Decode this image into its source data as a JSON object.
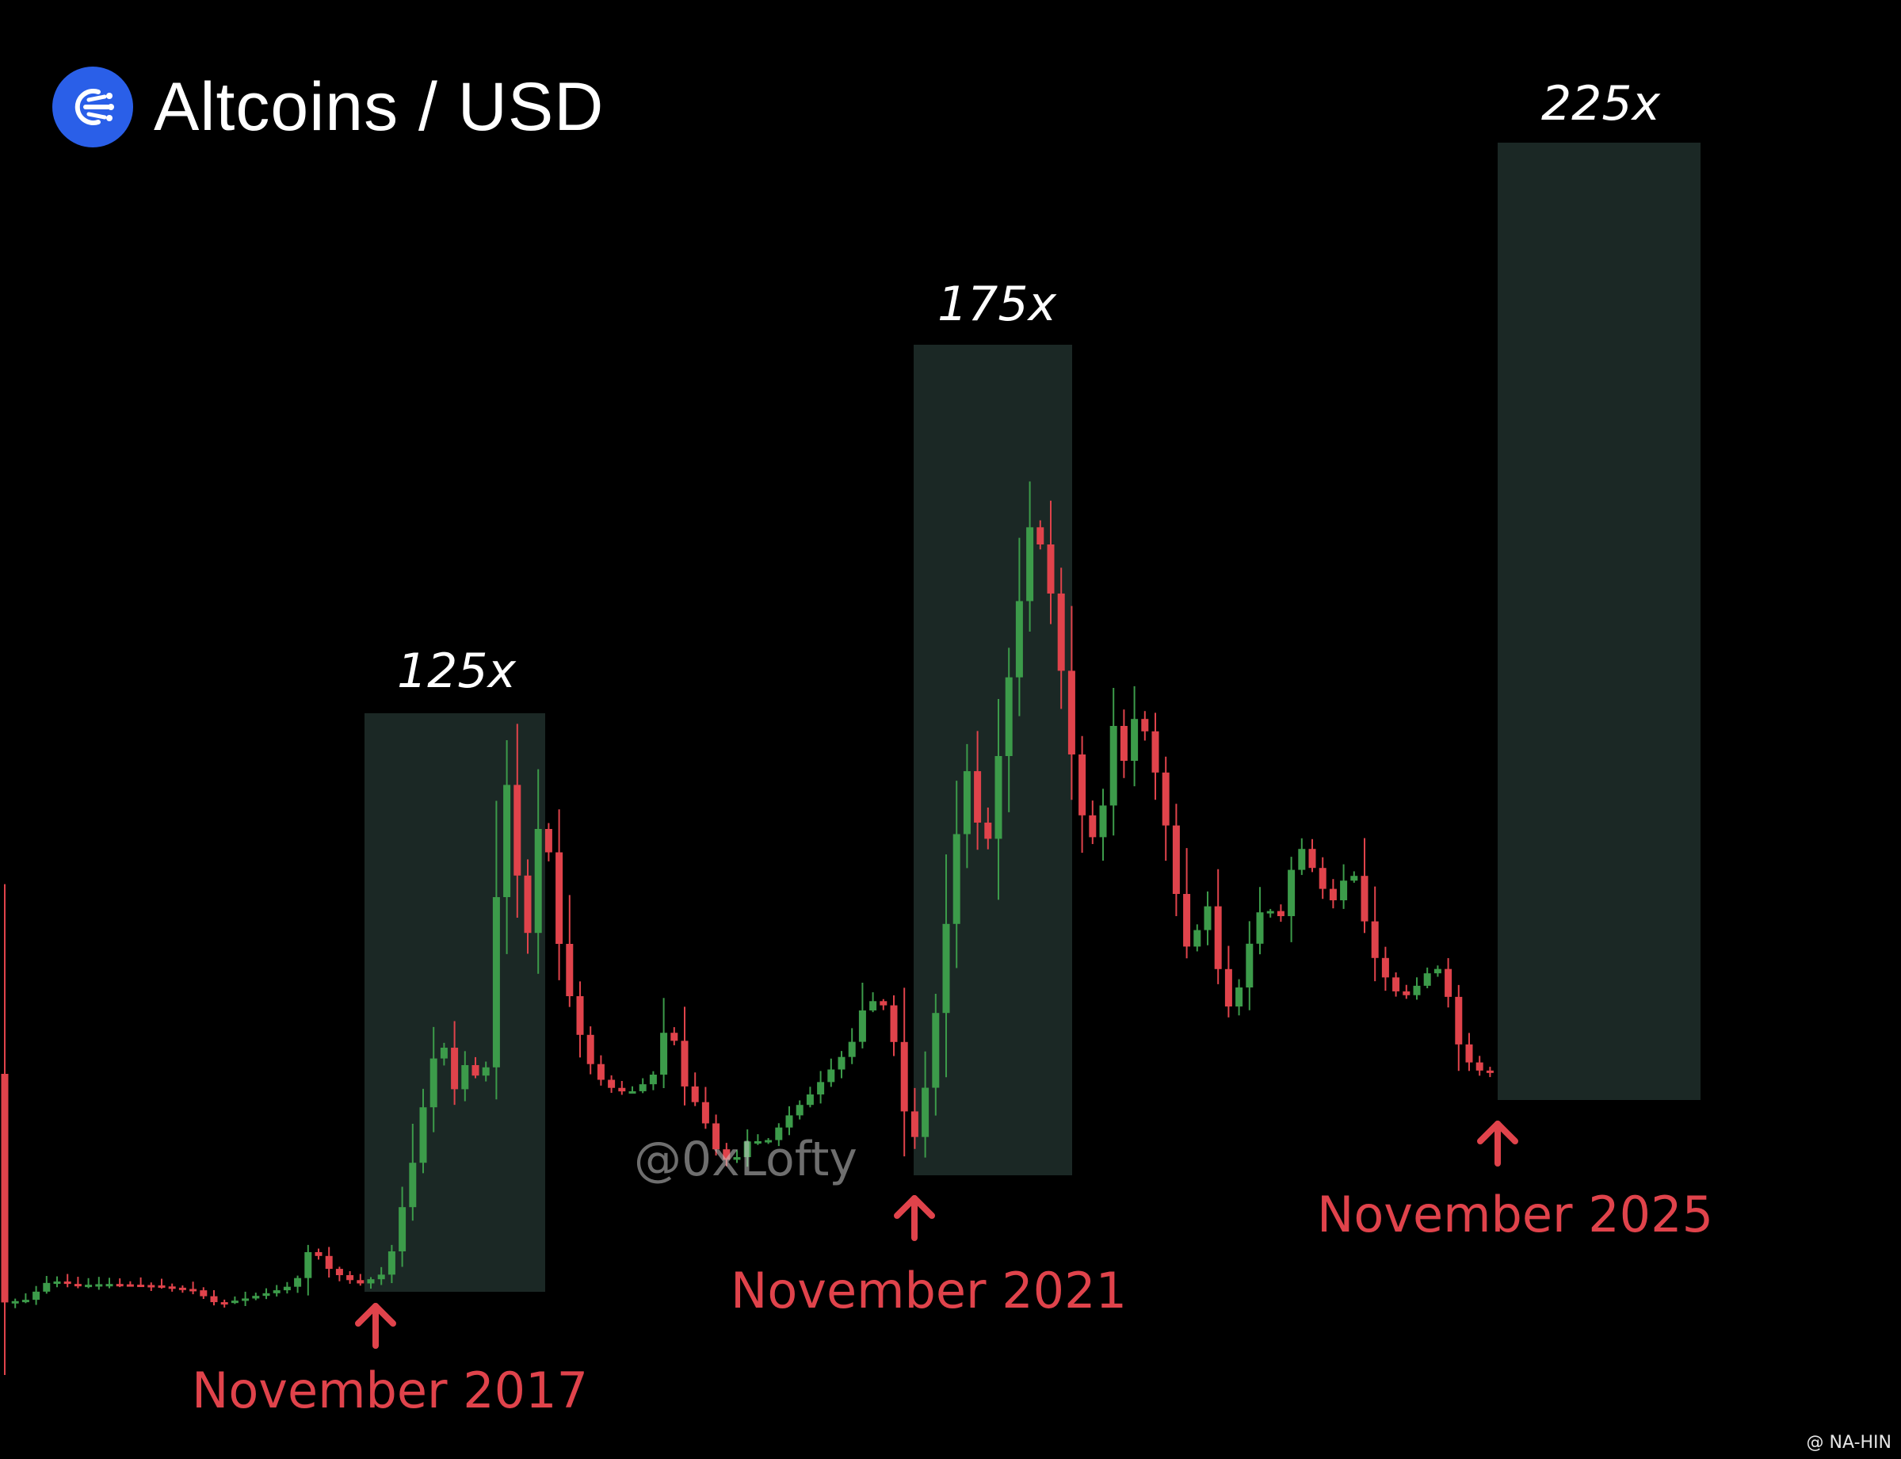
{
  "header": {
    "title": "Altcoins / USD",
    "logo_icon": "network-bolt-icon"
  },
  "colors": {
    "up": "#3c9b4a",
    "down": "#e0434b",
    "zone": "#1b2825",
    "accent": "#2a5fe8"
  },
  "watermark": "@0xLofty",
  "credit": "@ NA-HIN",
  "chart_data": {
    "type": "candlestick",
    "title": "Altcoins / USD",
    "xlabel": "",
    "ylabel": "",
    "grid": false,
    "cycles": [
      {
        "label": "125x",
        "date_label": "November 2017"
      },
      {
        "label": "175x",
        "date_label": "November 2021"
      },
      {
        "label": "225x",
        "date_label": "November 2025"
      }
    ]
  }
}
